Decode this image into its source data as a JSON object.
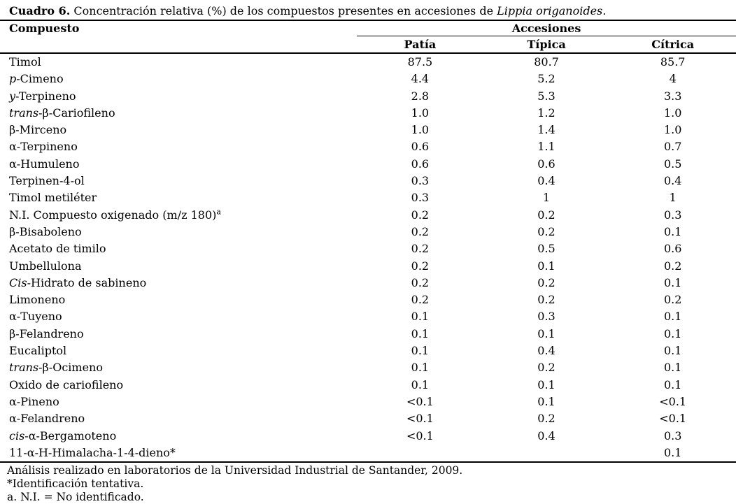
{
  "caption": {
    "label": "Cuadro 6.",
    "text": " Concentración relativa (%) de los compuestos presentes en accesiones de ",
    "species": "Lippia origanoides",
    "suffix": "."
  },
  "table": {
    "compound_header": "Compuesto",
    "group_header": "Accesiones",
    "accessions": [
      "Patía",
      "Típica",
      "Cítrica"
    ],
    "rows": [
      {
        "name": [
          {
            "t": "Timol"
          }
        ],
        "values": [
          "87.5",
          "80.7",
          "85.7"
        ]
      },
      {
        "name": [
          {
            "t": "p",
            "i": true
          },
          {
            "t": "-Cimeno"
          }
        ],
        "values": [
          "4.4",
          "5.2",
          "4"
        ]
      },
      {
        "name": [
          {
            "t": "y",
            "i": true
          },
          {
            "t": "-Terpineno"
          }
        ],
        "values": [
          "2.8",
          "5.3",
          "3.3"
        ]
      },
      {
        "name": [
          {
            "t": "trans",
            "i": true
          },
          {
            "t": "-β-Cariofileno"
          }
        ],
        "values": [
          "1.0",
          "1.2",
          "1.0"
        ]
      },
      {
        "name": [
          {
            "t": "β-Mirceno"
          }
        ],
        "values": [
          "1.0",
          "1.4",
          "1.0"
        ]
      },
      {
        "name": [
          {
            "t": "α-Terpineno"
          }
        ],
        "values": [
          "0.6",
          "1.1",
          "0.7"
        ]
      },
      {
        "name": [
          {
            "t": "α-Humuleno"
          }
        ],
        "values": [
          "0.6",
          "0.6",
          "0.5"
        ]
      },
      {
        "name": [
          {
            "t": "Terpinen-4-ol"
          }
        ],
        "values": [
          "0.3",
          "0.4",
          "0.4"
        ]
      },
      {
        "name": [
          {
            "t": "Timol metiléter"
          }
        ],
        "values": [
          "0.3",
          "1",
          "1"
        ]
      },
      {
        "name": [
          {
            "t": "N.I. Compuesto oxigenado (m/z 180)"
          },
          {
            "t": "a",
            "sup": true
          }
        ],
        "values": [
          "0.2",
          "0.2",
          "0.3"
        ]
      },
      {
        "name": [
          {
            "t": "β-Bisaboleno"
          }
        ],
        "values": [
          "0.2",
          "0.2",
          "0.1"
        ]
      },
      {
        "name": [
          {
            "t": "Acetato de timilo"
          }
        ],
        "values": [
          "0.2",
          "0.5",
          "0.6"
        ]
      },
      {
        "name": [
          {
            "t": "Umbellulona"
          }
        ],
        "values": [
          "0.2",
          "0.1",
          "0.2"
        ]
      },
      {
        "name": [
          {
            "t": "Cis",
            "i": true
          },
          {
            "t": "-Hidrato de sabineno"
          }
        ],
        "values": [
          "0.2",
          "0.2",
          "0.1"
        ]
      },
      {
        "name": [
          {
            "t": "Limoneno"
          }
        ],
        "values": [
          "0.2",
          "0.2",
          "0.2"
        ]
      },
      {
        "name": [
          {
            "t": "α-Tuyeno"
          }
        ],
        "values": [
          "0.1",
          "0.3",
          "0.1"
        ]
      },
      {
        "name": [
          {
            "t": "β-Felandreno"
          }
        ],
        "values": [
          "0.1",
          "0.1",
          "0.1"
        ]
      },
      {
        "name": [
          {
            "t": "Eucaliptol"
          }
        ],
        "values": [
          "0.1",
          "0.4",
          "0.1"
        ]
      },
      {
        "name": [
          {
            "t": "trans",
            "i": true
          },
          {
            "t": "-β-Ocimeno"
          }
        ],
        "values": [
          "0.1",
          "0.2",
          "0.1"
        ]
      },
      {
        "name": [
          {
            "t": "Oxido de cariofileno"
          }
        ],
        "values": [
          "0.1",
          "0.1",
          "0.1"
        ]
      },
      {
        "name": [
          {
            "t": "α-Pineno"
          }
        ],
        "values": [
          "<0.1",
          "0.1",
          "<0.1"
        ]
      },
      {
        "name": [
          {
            "t": "α-Felandreno"
          }
        ],
        "values": [
          "<0.1",
          "0.2",
          "<0.1"
        ]
      },
      {
        "name": [
          {
            "t": "cis",
            "i": true
          },
          {
            "t": "-α-Bergamoteno"
          }
        ],
        "values": [
          "<0.1",
          "0.4",
          "0.3"
        ]
      },
      {
        "name": [
          {
            "t": "11-α-H-Himalacha-1-4-dieno*"
          }
        ],
        "values": [
          "",
          "",
          "0.1"
        ]
      }
    ]
  },
  "footnotes": [
    "Análisis realizado en laboratorios de la Universidad Industrial de Santander, 2009.",
    "*Identificación tentativa.",
    "a. N.I. = No identificado."
  ],
  "colors": {
    "background": "#ffffff",
    "text": "#000000",
    "rule": "#000000"
  }
}
